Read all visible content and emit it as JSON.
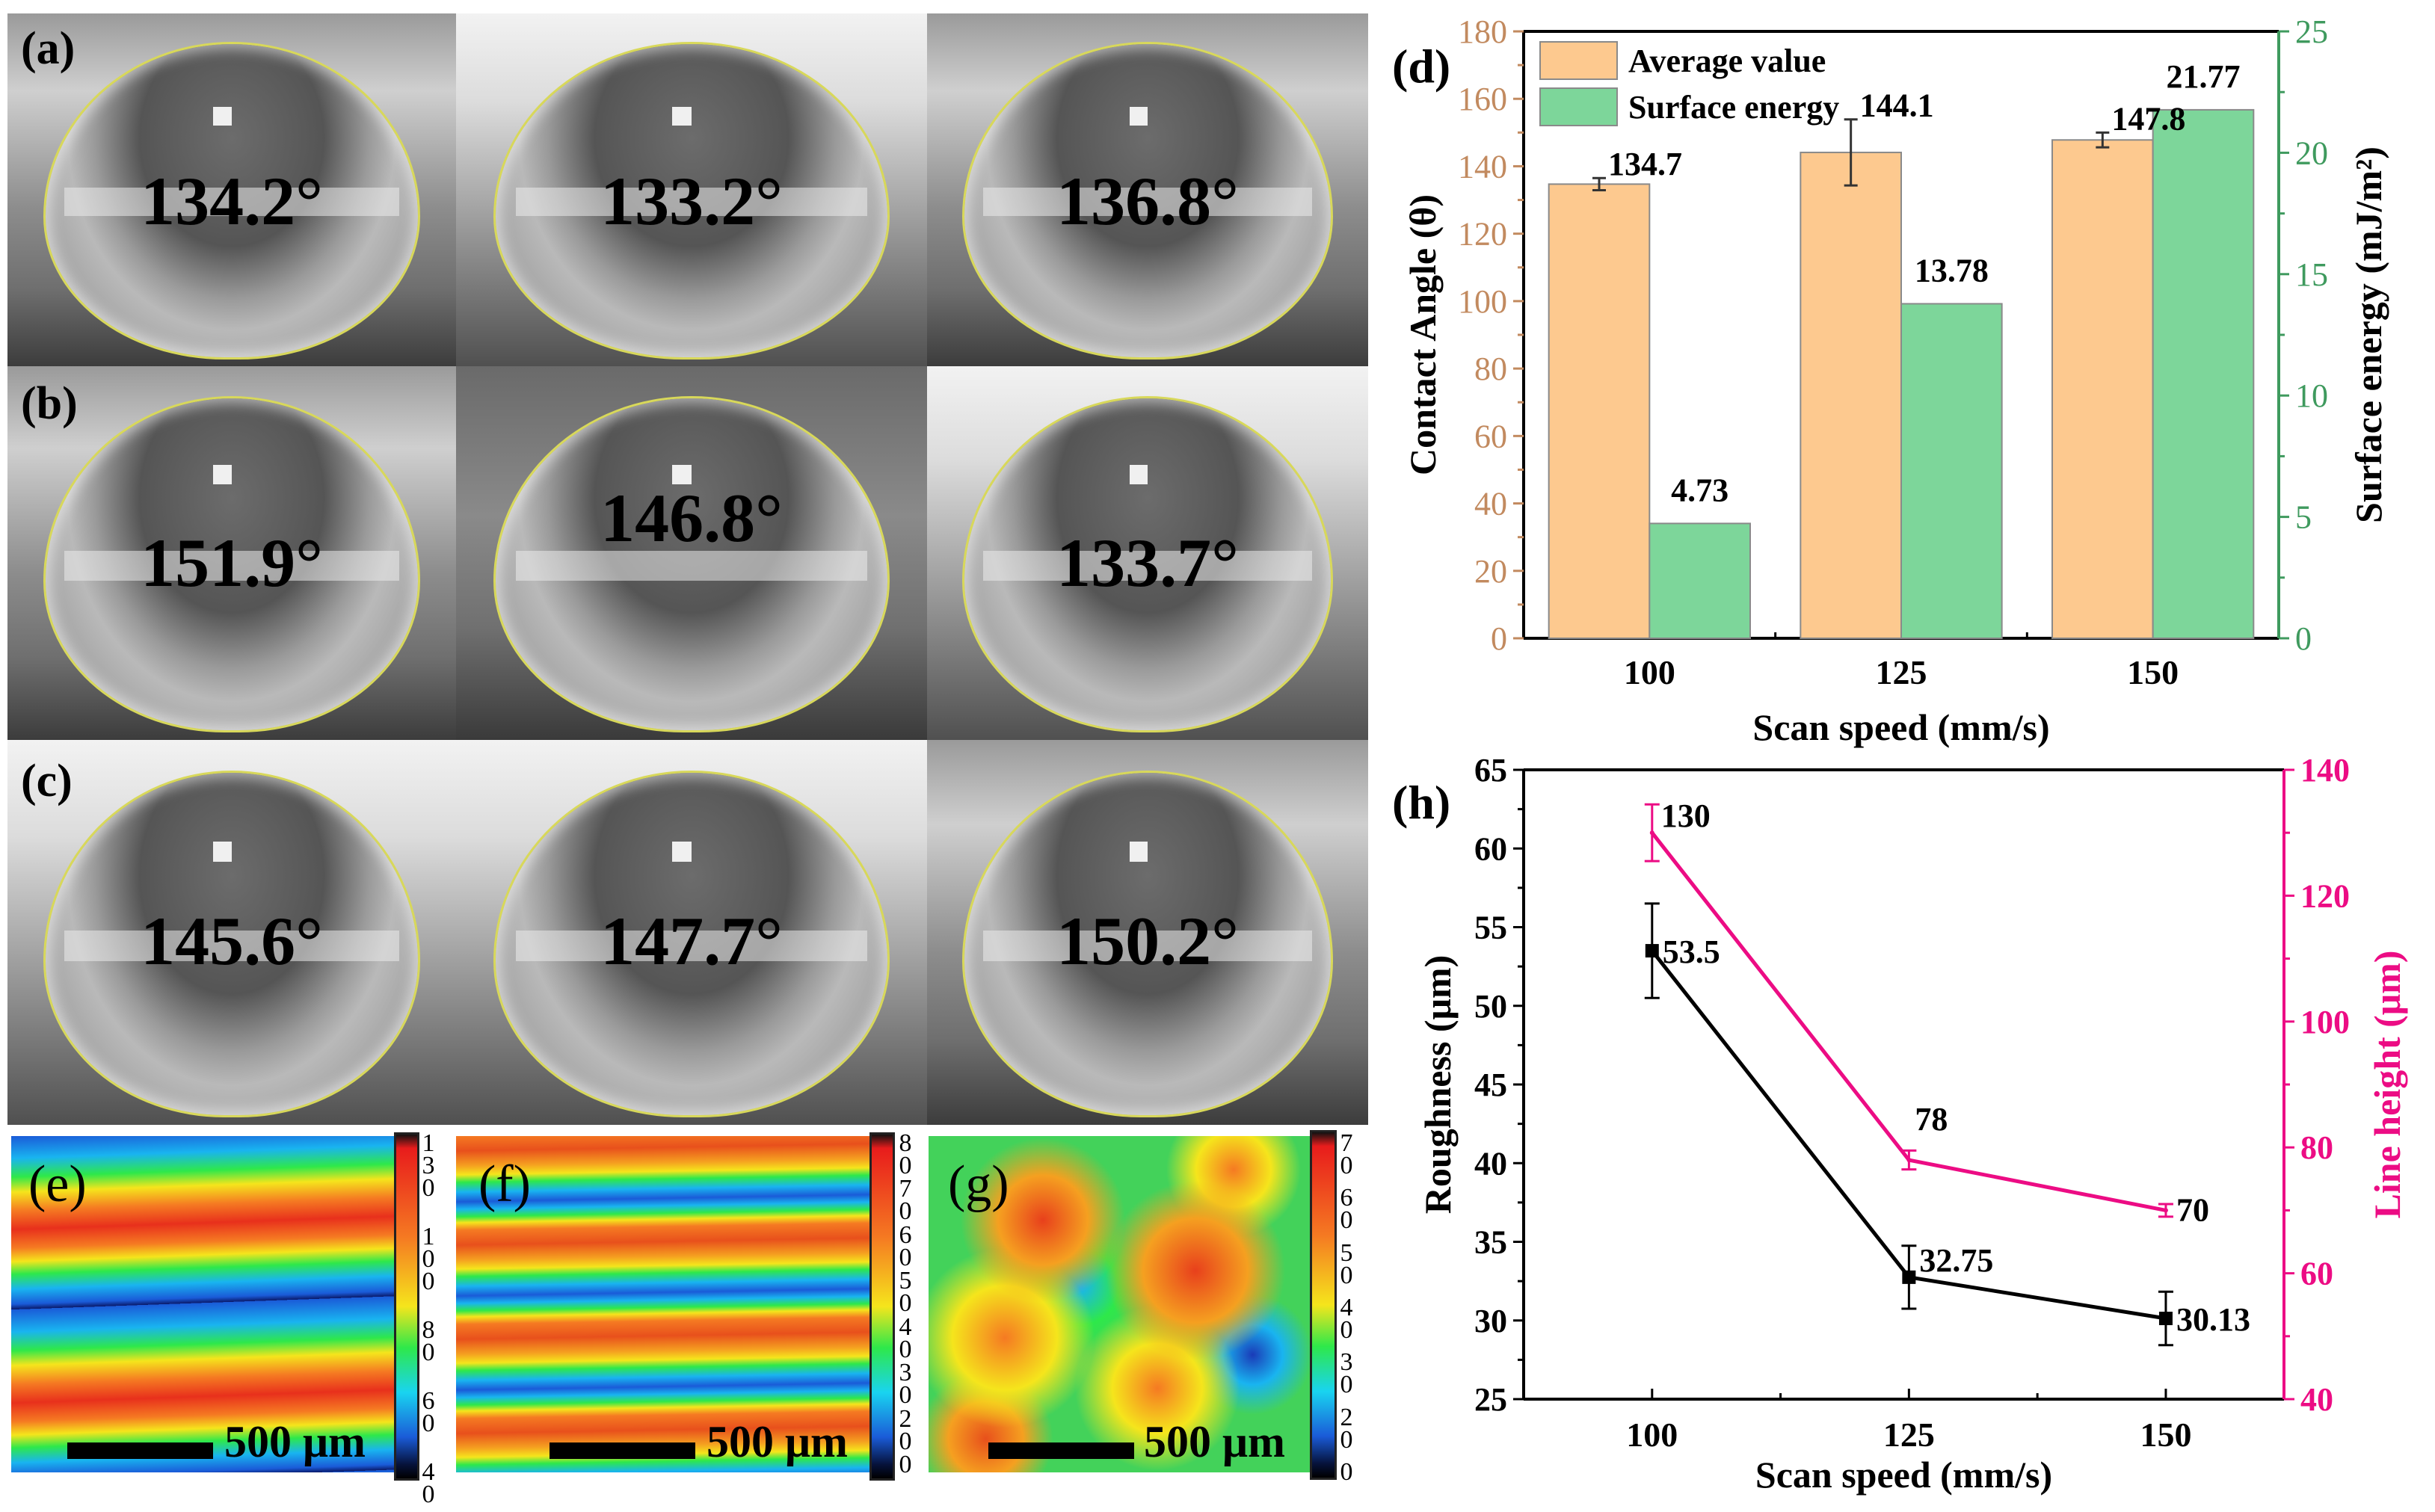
{
  "photo_rows": [
    {
      "label": "(a)",
      "angles": [
        "134.2°",
        "133.2°",
        "136.8°"
      ]
    },
    {
      "label": "(b)",
      "angles": [
        "151.9°",
        "146.8°",
        "133.7°"
      ]
    },
    {
      "label": "(c)",
      "angles": [
        "145.6°",
        "147.7°",
        "150.2°"
      ]
    }
  ],
  "maps": [
    {
      "label": "(e)",
      "scale_bar": "500 μm",
      "colorbar_ticks": [
        "130",
        "100",
        "80",
        "60",
        "40"
      ]
    },
    {
      "label": "(f)",
      "scale_bar": "500 μm",
      "colorbar_ticks": [
        "80",
        "70",
        "60",
        "50",
        "40",
        "30",
        "20",
        "0"
      ]
    },
    {
      "label": "(g)",
      "scale_bar": "500 μm",
      "colorbar_ticks": [
        "70",
        "60",
        "50",
        "40",
        "30",
        "20",
        "0"
      ]
    }
  ],
  "chart_data": [
    {
      "panel": "(d)",
      "type": "bar",
      "categories": [
        "100",
        "125",
        "150"
      ],
      "x": [
        100,
        125,
        150
      ],
      "xlabel": "Scan speed (mm/s)",
      "ylabel": "Contact Angle (θ)",
      "ylabel_right": "Surface energy (mJ/m²)",
      "xlim": [
        87.5,
        162.5
      ],
      "ylim": [
        0,
        180
      ],
      "ylim_right": [
        0,
        25
      ],
      "yticks": [
        0,
        20,
        40,
        60,
        80,
        100,
        120,
        140,
        160,
        180
      ],
      "yticks_right": [
        0,
        5,
        10,
        15,
        20,
        25
      ],
      "legend_position": "top-left",
      "series": [
        {
          "name": "Average value",
          "axis": "left",
          "values": [
            134.7,
            144.1,
            147.8
          ],
          "errors": [
            1.8,
            9.8,
            2.2
          ],
          "labels": [
            "134.7",
            "144.1",
            "147.8"
          ],
          "color": "#fdc98f"
        },
        {
          "name": "Surface energy",
          "axis": "right",
          "values": [
            4.73,
            13.78,
            21.77
          ],
          "labels": [
            "4.73",
            "13.78",
            "21.77"
          ],
          "color": "#7dd69a"
        }
      ],
      "colors": {
        "left_axis": "#c28a5f",
        "right_axis": "#3f9a5e"
      }
    },
    {
      "panel": "(h)",
      "type": "line",
      "categories": [
        "100",
        "125",
        "150"
      ],
      "x": [
        100,
        125,
        150
      ],
      "xlabel": "Scan speed (mm/s)",
      "ylabel": "Roughness (μm)",
      "ylabel_right": "Line height (μm)",
      "xlim": [
        87.5,
        161.5
      ],
      "ylim": [
        25,
        65
      ],
      "ylim_right": [
        40,
        140
      ],
      "yticks": [
        25,
        30,
        35,
        40,
        45,
        50,
        55,
        60,
        65
      ],
      "yticks_right": [
        40,
        60,
        80,
        100,
        120,
        140
      ],
      "series": [
        {
          "name": "Roughness",
          "axis": "left",
          "values": [
            53.5,
            32.75,
            30.13
          ],
          "errors": [
            3.0,
            2.0,
            1.7
          ],
          "labels": [
            "53.5",
            "32.75",
            "30.13"
          ],
          "color": "#000000"
        },
        {
          "name": "Line height",
          "axis": "right",
          "values": [
            130,
            78,
            70
          ],
          "errors": [
            4.5,
            1.5,
            1.0
          ],
          "labels": [
            "130",
            "78",
            "70"
          ],
          "color": "#ec0c84"
        }
      ],
      "colors": {
        "left_axis": "#000000",
        "right_axis": "#ec0c84"
      }
    }
  ]
}
